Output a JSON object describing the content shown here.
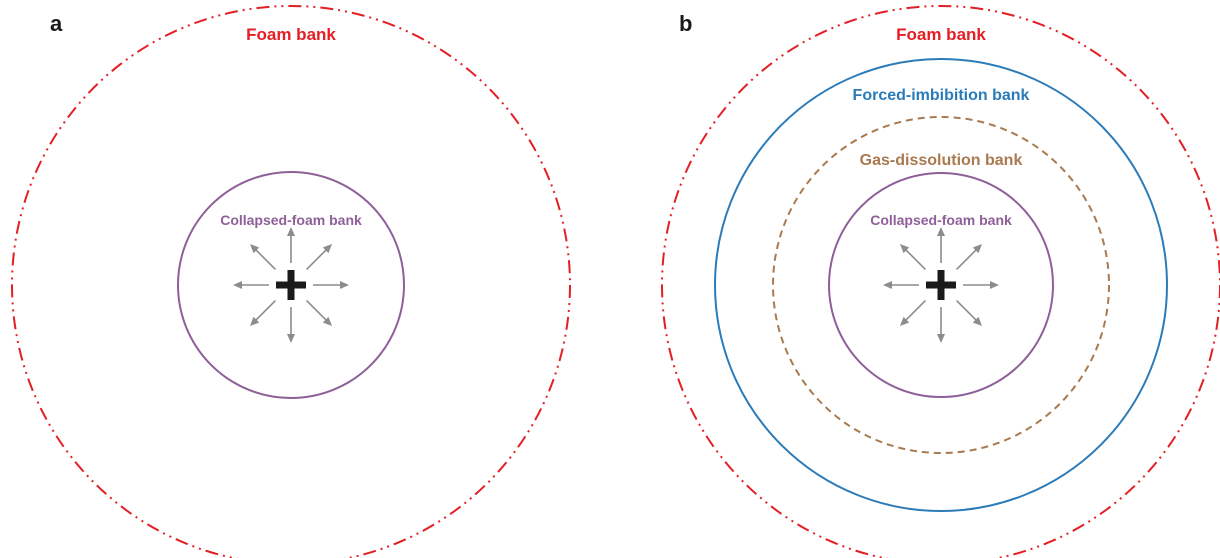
{
  "colors": {
    "foam": "#e31e24",
    "forced_imbibition": "#2b7bb9",
    "gas_dissolution": "#a97a4f",
    "collapsed_foam": "#8e5f98",
    "injector": "#1a1a1a",
    "arrows": "#8c8c8c"
  },
  "panel_a": {
    "label": "a",
    "foam_bank": "Foam bank",
    "collapsed_foam_bank": "Collapsed-foam bank",
    "injector_icon": "plus-icon"
  },
  "panel_b": {
    "label": "b",
    "foam_bank": "Foam bank",
    "forced_imbibition_bank": "Forced-imbibition bank",
    "gas_dissolution_bank": "Gas-dissolution bank",
    "collapsed_foam_bank": "Collapsed-foam bank",
    "injector_icon": "plus-icon"
  }
}
